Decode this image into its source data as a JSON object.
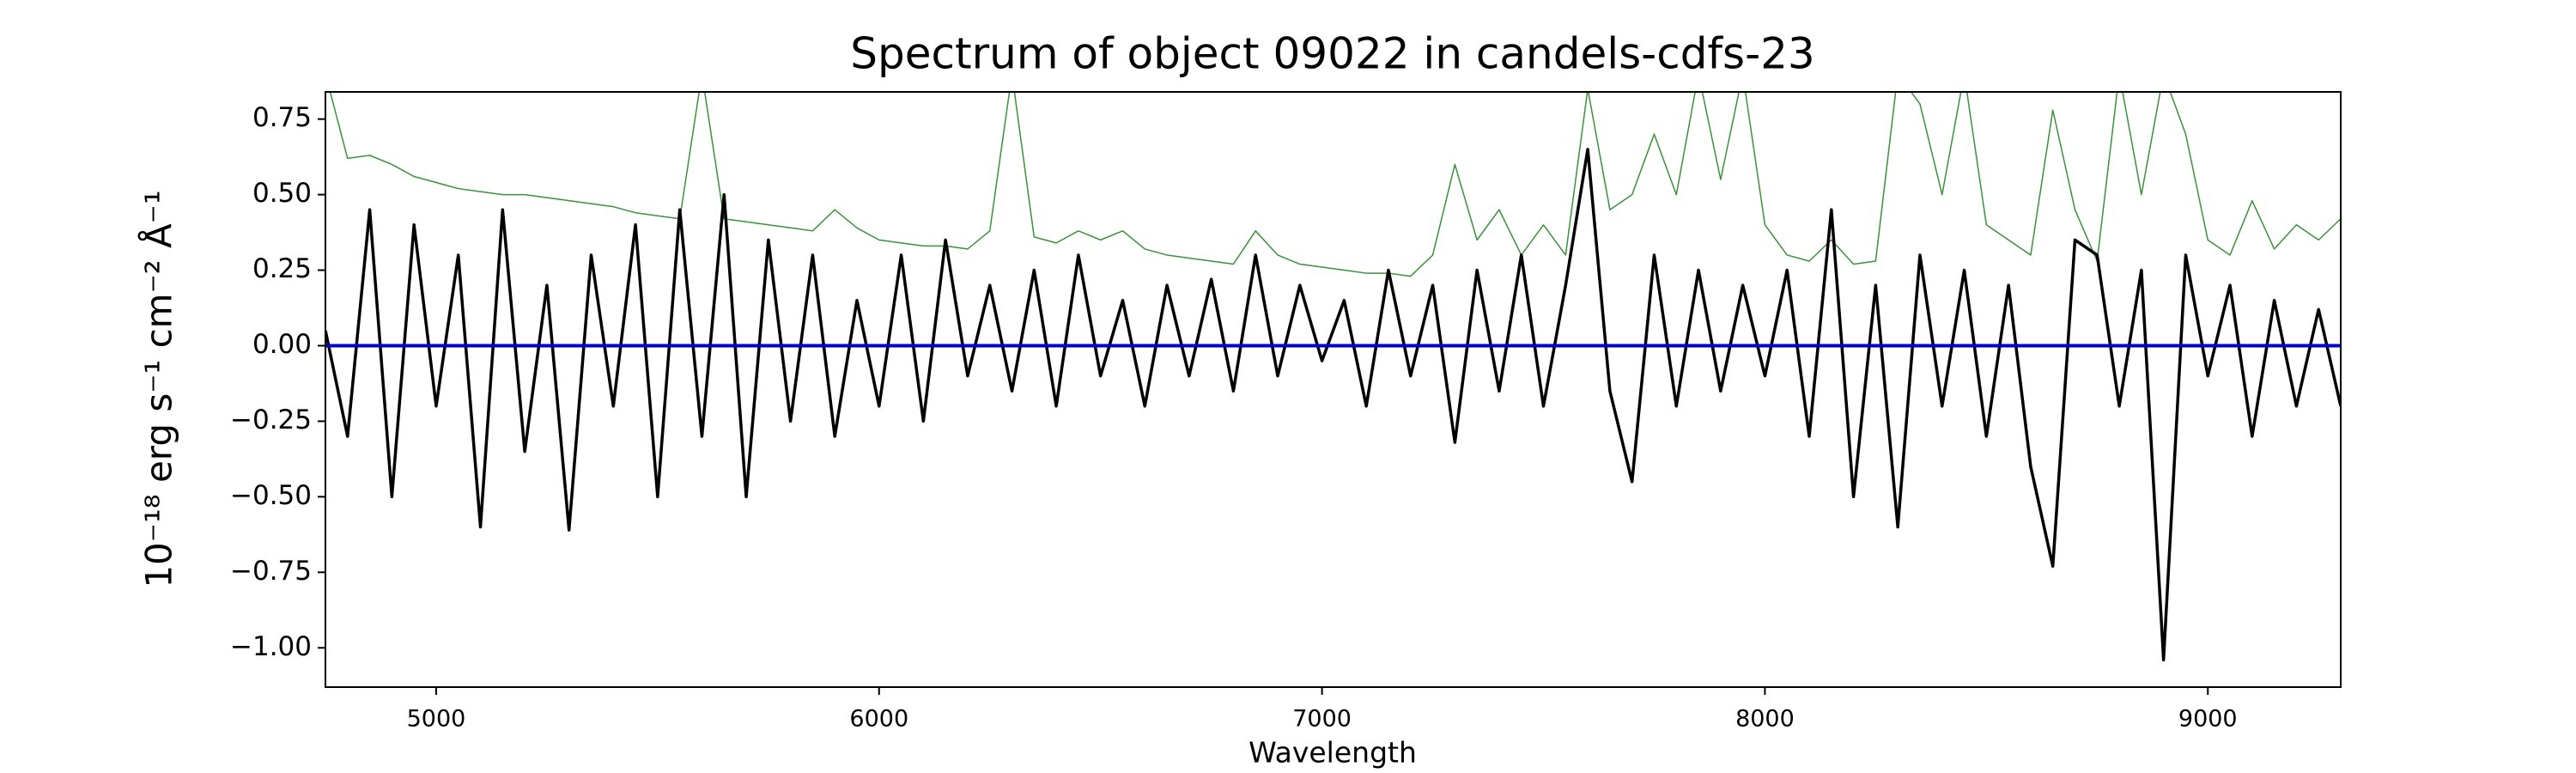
{
  "chart_data": {
    "type": "line",
    "title": "Spectrum of object 09022 in candels-cdfs-23",
    "x_label": "Wavelength",
    "y_label": "10⁻¹⁸ erg s⁻¹ cm⁻² Å⁻¹",
    "x": [
      4750,
      4800,
      4850,
      4900,
      4950,
      5000,
      5050,
      5100,
      5150,
      5200,
      5250,
      5300,
      5350,
      5400,
      5450,
      5500,
      5550,
      5600,
      5650,
      5700,
      5750,
      5800,
      5850,
      5900,
      5950,
      6000,
      6050,
      6100,
      6150,
      6200,
      6250,
      6300,
      6350,
      6400,
      6450,
      6500,
      6550,
      6600,
      6650,
      6700,
      6750,
      6800,
      6850,
      6900,
      6950,
      7000,
      7050,
      7100,
      7150,
      7200,
      7250,
      7300,
      7350,
      7400,
      7450,
      7500,
      7550,
      7600,
      7650,
      7700,
      7750,
      7800,
      7850,
      7900,
      7950,
      8000,
      8050,
      8100,
      8150,
      8200,
      8250,
      8300,
      8350,
      8400,
      8450,
      8500,
      8550,
      8600,
      8650,
      8700,
      8750,
      8800,
      8850,
      8900,
      8950,
      9000,
      9050,
      9100,
      9150,
      9200,
      9250,
      9300
    ],
    "series": [
      {
        "color": "#3a913a",
        "width": 1.5,
        "values": [
          0.9,
          0.62,
          0.63,
          0.6,
          0.56,
          0.54,
          0.52,
          0.51,
          0.5,
          0.5,
          0.49,
          0.48,
          0.47,
          0.46,
          0.44,
          0.43,
          0.42,
          0.9,
          0.42,
          0.41,
          0.4,
          0.39,
          0.38,
          0.45,
          0.39,
          0.35,
          0.34,
          0.33,
          0.33,
          0.32,
          0.38,
          0.9,
          0.36,
          0.34,
          0.38,
          0.35,
          0.38,
          0.32,
          0.3,
          0.29,
          0.28,
          0.27,
          0.38,
          0.3,
          0.27,
          0.26,
          0.25,
          0.24,
          0.24,
          0.23,
          0.3,
          0.6,
          0.35,
          0.45,
          0.3,
          0.4,
          0.3,
          0.85,
          0.45,
          0.5,
          0.7,
          0.5,
          0.9,
          0.55,
          0.9,
          0.4,
          0.3,
          0.28,
          0.35,
          0.27,
          0.28,
          0.9,
          0.8,
          0.5,
          0.9,
          0.4,
          0.35,
          0.3,
          0.78,
          0.45,
          0.28,
          0.9,
          0.5,
          0.9,
          0.7,
          0.35,
          0.3,
          0.48,
          0.32,
          0.4,
          0.35,
          0.42
        ]
      },
      {
        "color": "#000000",
        "width": 3.5,
        "values": [
          0.05,
          -0.3,
          0.45,
          -0.5,
          0.4,
          -0.2,
          0.3,
          -0.6,
          0.45,
          -0.35,
          0.2,
          -0.61,
          0.3,
          -0.2,
          0.4,
          -0.5,
          0.45,
          -0.3,
          0.5,
          -0.5,
          0.35,
          -0.25,
          0.3,
          -0.3,
          0.15,
          -0.2,
          0.3,
          -0.25,
          0.35,
          -0.1,
          0.2,
          -0.15,
          0.25,
          -0.2,
          0.3,
          -0.1,
          0.15,
          -0.2,
          0.2,
          -0.1,
          0.22,
          -0.15,
          0.3,
          -0.1,
          0.2,
          -0.05,
          0.15,
          -0.2,
          0.25,
          -0.1,
          0.2,
          -0.32,
          0.25,
          -0.15,
          0.3,
          -0.2,
          0.2,
          0.65,
          -0.15,
          -0.45,
          0.3,
          -0.2,
          0.25,
          -0.15,
          0.2,
          -0.1,
          0.25,
          -0.3,
          0.45,
          -0.5,
          0.2,
          -0.6,
          0.3,
          -0.2,
          0.25,
          -0.3,
          0.2,
          -0.4,
          -0.73,
          0.35,
          0.3,
          -0.2,
          0.25,
          -1.04,
          0.3,
          -0.1,
          0.2,
          -0.3,
          0.15,
          -0.2,
          0.12,
          -0.2
        ]
      },
      {
        "color": "#0000cc",
        "width": 4,
        "values": [
          0,
          0,
          0,
          0,
          0,
          0,
          0,
          0,
          0,
          0,
          0,
          0,
          0,
          0,
          0,
          0,
          0,
          0,
          0,
          0,
          0,
          0,
          0,
          0,
          0,
          0,
          0,
          0,
          0,
          0,
          0,
          0,
          0,
          0,
          0,
          0,
          0,
          0,
          0,
          0,
          0,
          0,
          0,
          0,
          0,
          0,
          0,
          0,
          0,
          0,
          0,
          0,
          0,
          0,
          0,
          0,
          0,
          0,
          0,
          0,
          0,
          0,
          0,
          0,
          0,
          0,
          0,
          0,
          0,
          0,
          0,
          0,
          0,
          0,
          0,
          0,
          0,
          0,
          0,
          0,
          0,
          0,
          0,
          0,
          0,
          0,
          0,
          0,
          0,
          0,
          0,
          0
        ]
      }
    ],
    "xlim": [
      4750,
      9300
    ],
    "ylim": [
      -1.13,
      0.84
    ],
    "xticks": [
      5000,
      6000,
      7000,
      8000,
      9000
    ],
    "yticks": [
      {
        "value": 0.75,
        "label": "0.75"
      },
      {
        "value": 0.5,
        "label": "0.50"
      },
      {
        "value": 0.25,
        "label": "0.25"
      },
      {
        "value": 0,
        "label": "0.00"
      },
      {
        "value": -0.25,
        "label": "−0.25"
      },
      {
        "value": -0.5,
        "label": "−0.50"
      },
      {
        "value": -0.75,
        "label": "−0.75"
      },
      {
        "value": -1,
        "label": "−1.00"
      }
    ],
    "grid": false
  }
}
